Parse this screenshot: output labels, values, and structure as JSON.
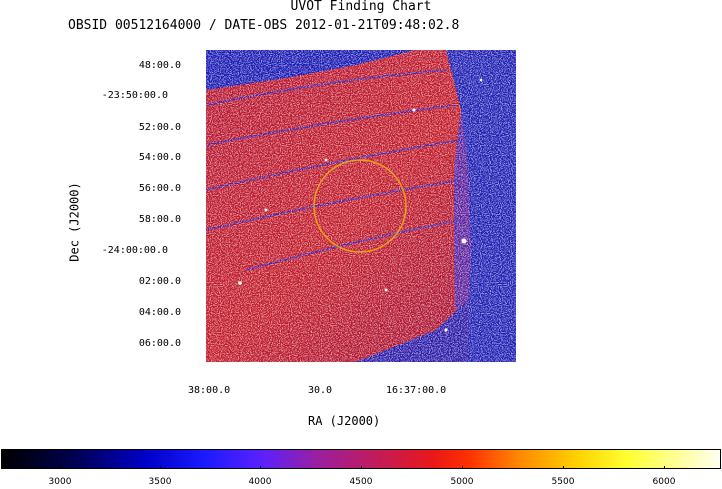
{
  "title": "UVOT Finding Chart",
  "subtitle": "OBSID 00512164000 / DATE-OBS 2012-01-21T09:48:02.8",
  "axes": {
    "ra_label": "RA (J2000)",
    "dec_label": "Dec (J2000)",
    "ra_ticks": [
      "38:00.0",
      "30.0",
      "16:37:00.0"
    ],
    "dec_ticks": [
      "48:00.0",
      "-23:50:00.0",
      "52:00.0",
      "54:00.0",
      "56:00.0",
      "58:00.0",
      "-24:00:00.0",
      "02:00.0",
      "04:00.0",
      "06:00.0"
    ]
  },
  "colorbar": {
    "ticks": [
      "3000",
      "3500",
      "4000",
      "4500",
      "5000",
      "5500",
      "6000"
    ],
    "colormap": [
      "#000000",
      "#0000c8",
      "#5a21ff",
      "#e81818",
      "#ff8800",
      "#ffff30",
      "#fffff0"
    ]
  },
  "image": {
    "background_color": "#b3122d",
    "edge_color": "#1a1ab4",
    "circle_color": "#e8a21a"
  }
}
